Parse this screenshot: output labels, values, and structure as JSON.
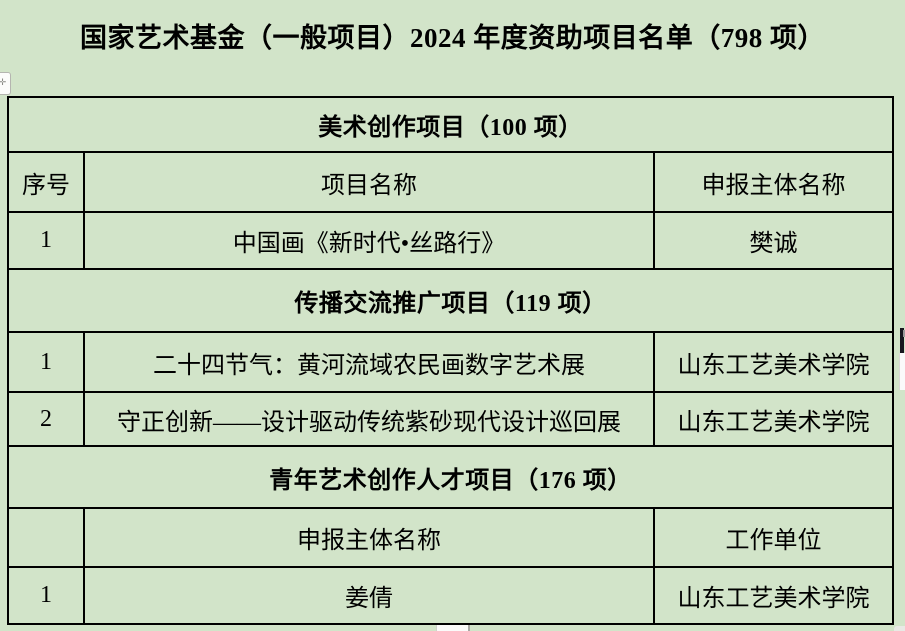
{
  "title": "国家艺术基金（一般项目）2024 年度资助项目名单（798 项）",
  "colors": {
    "page_background": "#d2e4c9",
    "table_border": "#000000",
    "text": "#000000"
  },
  "icons": {
    "table_anchor": "✛",
    "vertical_scrollbar": "bar",
    "horizontal_scrollbar": "bar"
  },
  "table": {
    "rows": [
      {
        "type": "section",
        "label": "美术创作项目（100 项）"
      },
      {
        "type": "header",
        "cells": [
          "序号",
          "项目名称",
          "申报主体名称"
        ]
      },
      {
        "type": "data",
        "cells": [
          "1",
          "中国画《新时代•丝路行》",
          "樊诚"
        ]
      },
      {
        "type": "section",
        "label": "传播交流推广项目（119 项）"
      },
      {
        "type": "data",
        "cells": [
          "1",
          "二十四节气：黄河流域农民画数字艺术展",
          "山东工艺美术学院"
        ]
      },
      {
        "type": "data",
        "cells": [
          "2",
          "守正创新——设计驱动传统紫砂现代设计巡回展",
          "山东工艺美术学院"
        ]
      },
      {
        "type": "section",
        "label": "青年艺术创作人才项目（176 项）"
      },
      {
        "type": "header",
        "cells": [
          "",
          "申报主体名称",
          "工作单位"
        ]
      },
      {
        "type": "data",
        "cells": [
          "1",
          "姜倩",
          "山东工艺美术学院"
        ]
      }
    ]
  }
}
